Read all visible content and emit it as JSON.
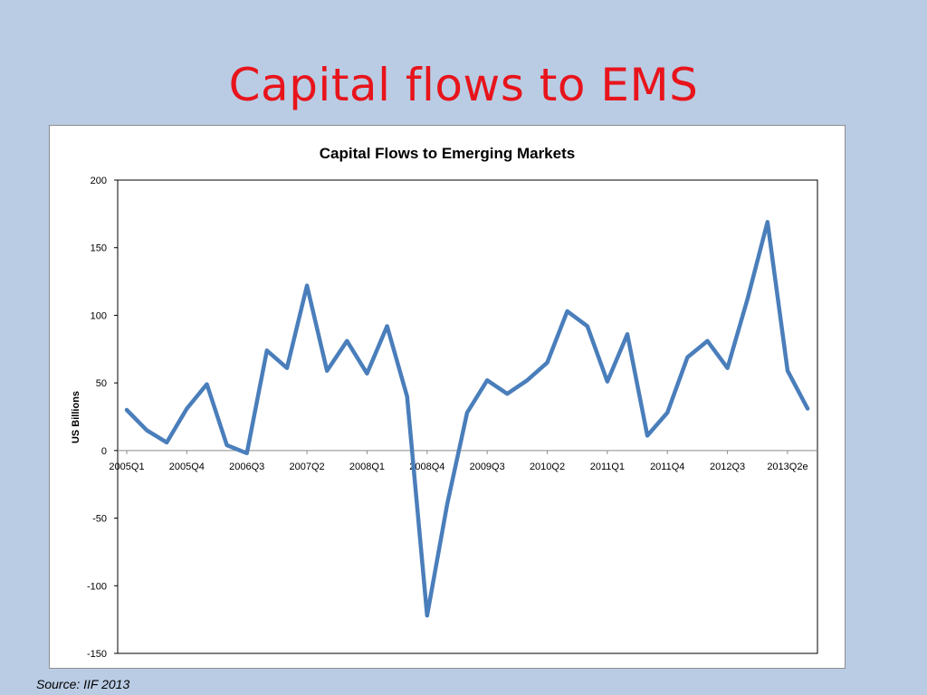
{
  "slide": {
    "title": "Capital flows to EMS",
    "source": "Source: IIF 2013"
  },
  "colors": {
    "background": "#b9cce4",
    "title": "#e8141b",
    "series": "#4a7ebb"
  },
  "chart_data": {
    "type": "line",
    "title": "Capital Flows to Emerging Markets",
    "xlabel": "",
    "ylabel": "US Billions",
    "ylim": [
      -150,
      200
    ],
    "yticks": [
      200,
      150,
      100,
      50,
      0,
      -50,
      -100,
      -150
    ],
    "grid": false,
    "legend": "none",
    "x": [
      "2005Q1",
      "2005Q2",
      "2005Q3",
      "2005Q4",
      "2006Q1",
      "2006Q2",
      "2006Q3",
      "2006Q4",
      "2007Q1",
      "2007Q2",
      "2007Q3",
      "2007Q4",
      "2008Q1",
      "2008Q2",
      "2008Q3",
      "2008Q4",
      "2009Q1",
      "2009Q2",
      "2009Q3",
      "2009Q4",
      "2010Q1",
      "2010Q2",
      "2010Q3",
      "2010Q4",
      "2011Q1",
      "2011Q2",
      "2011Q3",
      "2011Q4",
      "2012Q1",
      "2012Q2",
      "2012Q3",
      "2012Q4",
      "2013Q1",
      "2013Q2e",
      "2013Q3"
    ],
    "tick_labels": [
      {
        "index": 0,
        "label": "2005Q1"
      },
      {
        "index": 3,
        "label": "2005Q4"
      },
      {
        "index": 6,
        "label": "2006Q3"
      },
      {
        "index": 9,
        "label": "2007Q2"
      },
      {
        "index": 12,
        "label": "2008Q1"
      },
      {
        "index": 15,
        "label": "2008Q4"
      },
      {
        "index": 18,
        "label": "2009Q3"
      },
      {
        "index": 21,
        "label": "2010Q2"
      },
      {
        "index": 24,
        "label": "2011Q1"
      },
      {
        "index": 27,
        "label": "2011Q4"
      },
      {
        "index": 30,
        "label": "2012Q3"
      },
      {
        "index": 33,
        "label": "2013Q2e"
      }
    ],
    "series": [
      {
        "values": [
          30,
          15,
          6,
          31,
          49,
          4,
          -2,
          74,
          61,
          122,
          59,
          81,
          57,
          92,
          40,
          -122,
          -40,
          28,
          52,
          42,
          52,
          65,
          103,
          92,
          51,
          86,
          11,
          28,
          69,
          81,
          61,
          112,
          169,
          59,
          31
        ]
      }
    ]
  }
}
